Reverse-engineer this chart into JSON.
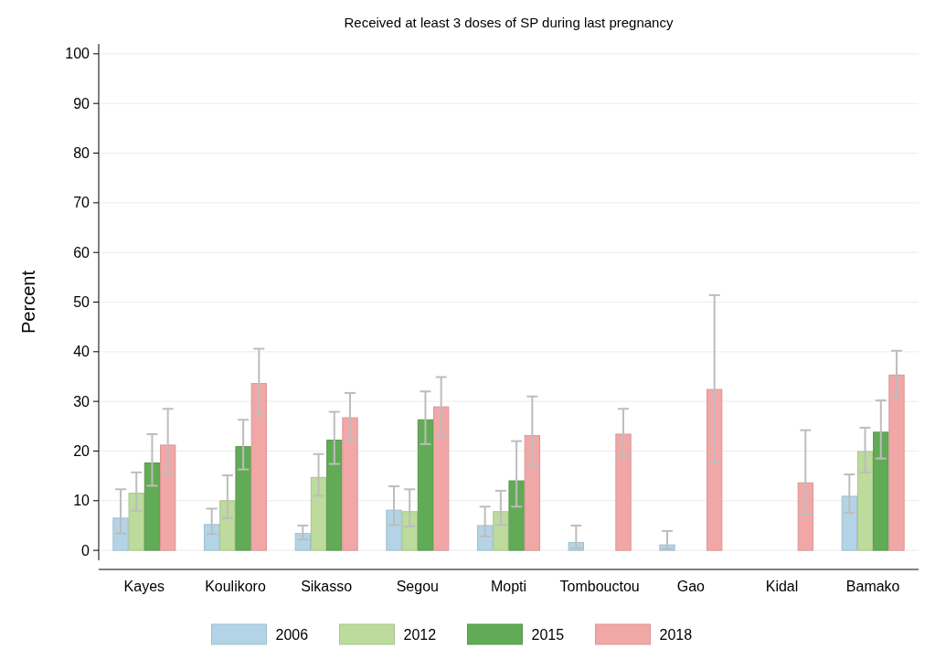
{
  "chart_data": {
    "type": "bar",
    "title": "Received at least 3 doses of SP during last pregnancy",
    "ylabel": "Percent",
    "categories": [
      "Kayes",
      "Koulikoro",
      "Sikasso",
      "Segou",
      "Mopti",
      "Tombouctou",
      "Gao",
      "Kidal",
      "Bamako"
    ],
    "series": [
      {
        "name": "2006",
        "color": "#b3d4e6",
        "values": [
          6.5,
          5.2,
          3.4,
          8.1,
          5,
          1.6,
          1.1,
          null,
          10.9
        ],
        "errors": [
          [
            3.4,
            12.3
          ],
          [
            3.3,
            8.4
          ],
          [
            2.2,
            5
          ],
          [
            5.1,
            12.9
          ],
          [
            2.8,
            8.8
          ],
          [
            0.4,
            5
          ],
          [
            0.3,
            3.9
          ],
          null,
          [
            7.6,
            15.3
          ]
        ]
      },
      {
        "name": "2012",
        "color": "#bcdb9c",
        "values": [
          11.5,
          10,
          14.7,
          7.8,
          7.8,
          null,
          null,
          null,
          19.9
        ],
        "errors": [
          [
            8,
            15.7
          ],
          [
            6.5,
            15.1
          ],
          [
            11,
            19.4
          ],
          [
            4.8,
            12.3
          ],
          [
            5.1,
            12
          ],
          null,
          null,
          null,
          [
            15.7,
            24.7
          ]
        ]
      },
      {
        "name": "2015",
        "color": "#62ab56",
        "values": [
          17.6,
          20.9,
          22.2,
          26.3,
          14,
          null,
          null,
          null,
          23.8
        ],
        "errors": [
          [
            13,
            23.4
          ],
          [
            16.3,
            26.3
          ],
          [
            17.4,
            27.9
          ],
          [
            21.4,
            32
          ],
          [
            8.8,
            22
          ],
          null,
          null,
          null,
          [
            18.5,
            30.2
          ]
        ]
      },
      {
        "name": "2018",
        "color": "#f2a7a7",
        "values": [
          21.2,
          33.6,
          26.7,
          28.9,
          23.1,
          23.4,
          32.4,
          13.6,
          35.3
        ],
        "errors": [
          [
            15.4,
            28.5
          ],
          [
            27.2,
            40.6
          ],
          [
            22.2,
            31.7
          ],
          [
            23,
            34.9
          ],
          [
            16.9,
            31
          ],
          [
            19,
            28.5
          ],
          [
            17.6,
            51.4
          ],
          [
            7.2,
            24.2
          ],
          [
            30.8,
            40.2
          ]
        ]
      }
    ],
    "ylim": [
      -2,
      102
    ],
    "yticks": [
      0,
      10,
      20,
      30,
      40,
      50,
      60,
      70,
      80,
      90,
      100
    ],
    "grid": "y",
    "legend": "bottom"
  }
}
